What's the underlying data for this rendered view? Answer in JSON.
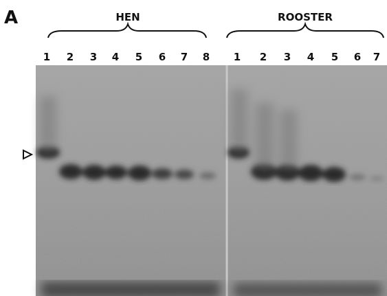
{
  "panel_label": "A",
  "groups": [
    {
      "label": "HEN",
      "lanes": [
        "1",
        "2",
        "3",
        "4",
        "5",
        "6",
        "7",
        "8"
      ]
    },
    {
      "label": "ROOSTER",
      "lanes": [
        "1",
        "2",
        "3",
        "4",
        "5",
        "6",
        "7"
      ]
    }
  ]
}
